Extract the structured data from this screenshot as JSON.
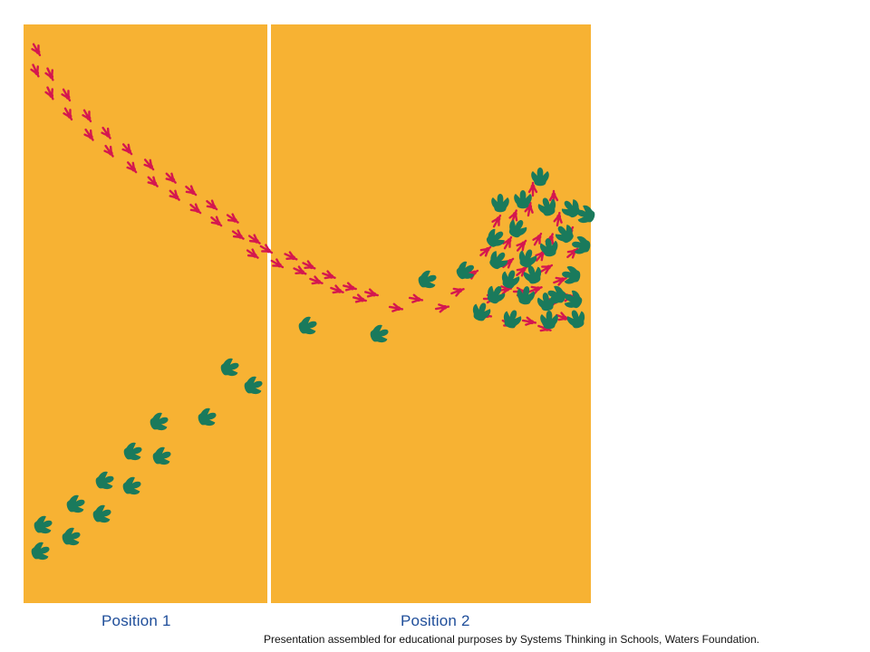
{
  "panels": [
    {
      "label": "Position 1"
    },
    {
      "label": "Position 2"
    }
  ],
  "credit": "Presentation assembled for educational purposes by Systems Thinking in Schools, Waters Foundation.",
  "colors": {
    "background": "#f7b233",
    "divider": "#ffffff",
    "bird_tracks": "#d4174f",
    "dino_tracks": "#1a7a5c",
    "caption": "#1f4e9a"
  },
  "icons": {
    "small_track": "bird-footprint-icon",
    "large_track": "dinosaur-footprint-icon"
  }
}
